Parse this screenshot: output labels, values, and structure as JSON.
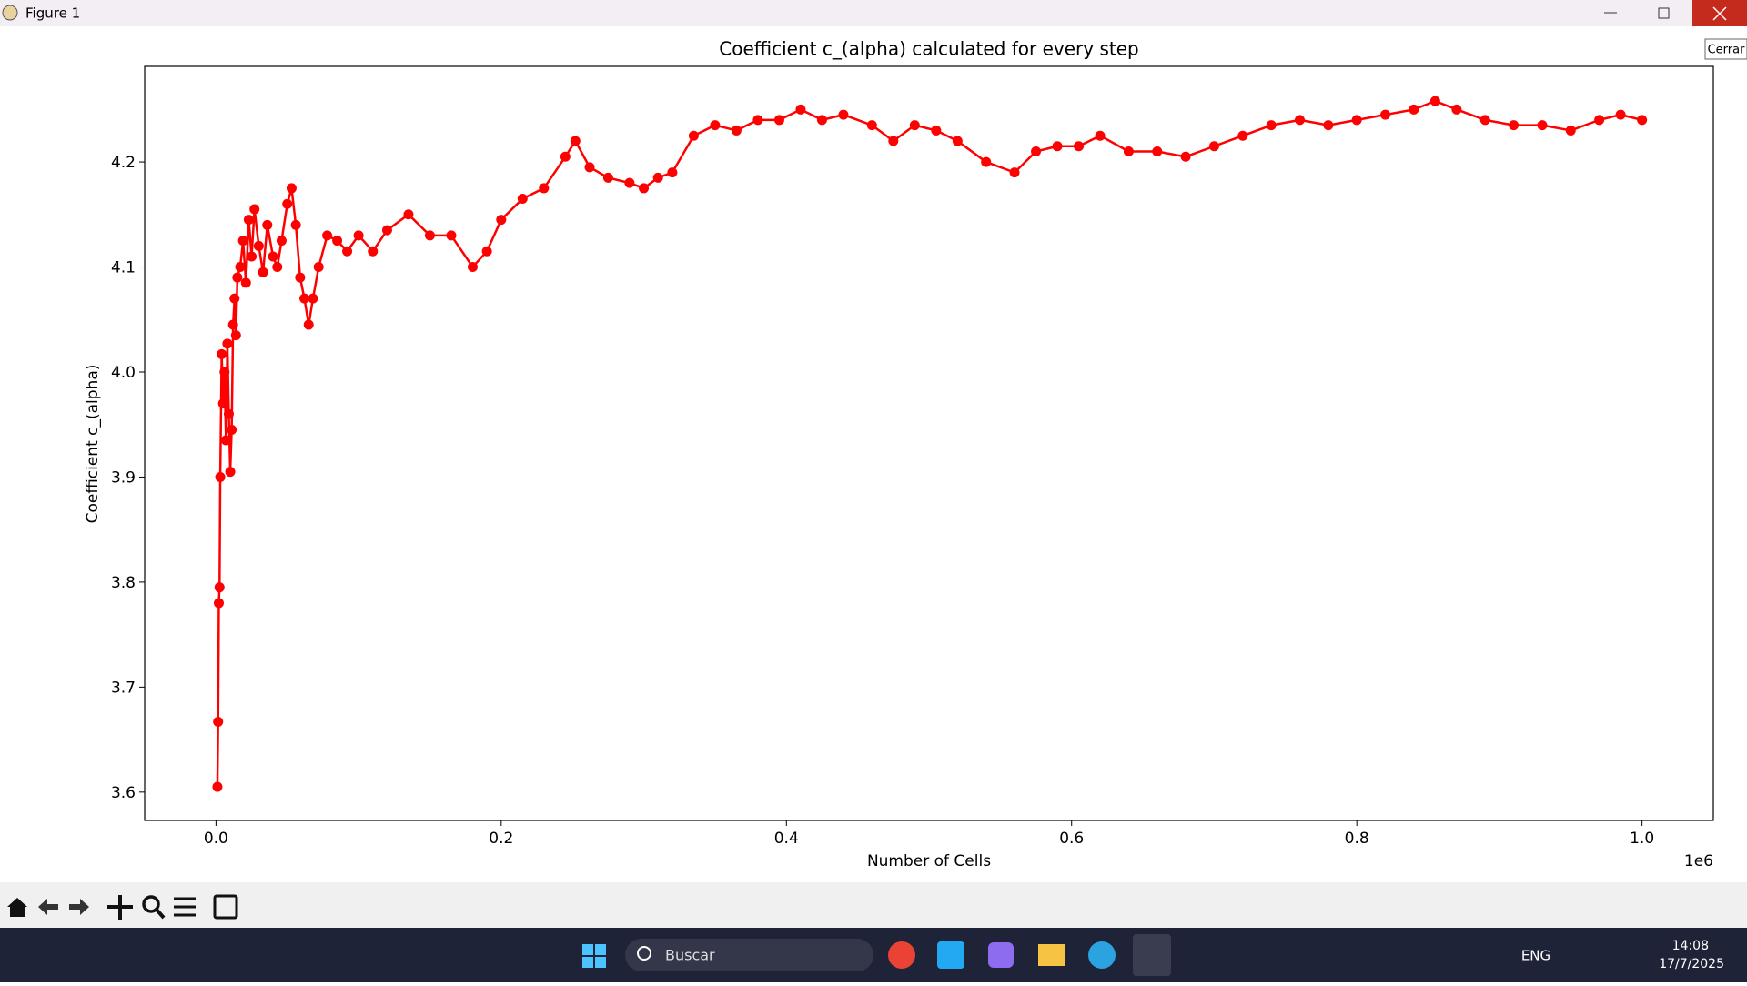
{
  "window": {
    "title": "Figure 1",
    "tooltip": "Cerrar"
  },
  "chart_data": {
    "type": "line",
    "title": "Coefficient c_(alpha) calculated for every step",
    "xlabel": "Number of Cells",
    "ylabel": "Coefficient c_(alpha)",
    "x_offset": "1e6",
    "x": [
      1000,
      1500,
      2000,
      2500,
      3000,
      4000,
      5000,
      6000,
      7000,
      8000,
      9000,
      10000,
      11000,
      12000,
      13000,
      14000,
      15000,
      17000,
      19000,
      21000,
      23000,
      25000,
      27000,
      30000,
      33000,
      36000,
      40000,
      43000,
      46000,
      50000,
      53000,
      56000,
      59000,
      62000,
      65000,
      68000,
      72000,
      78000,
      85000,
      92000,
      100000,
      110000,
      120000,
      135000,
      150000,
      165000,
      180000,
      190000,
      200000,
      215000,
      230000,
      245000,
      252000,
      262000,
      275000,
      290000,
      300000,
      310000,
      320000,
      335000,
      350000,
      365000,
      380000,
      395000,
      410000,
      425000,
      440000,
      460000,
      475000,
      490000,
      505000,
      520000,
      540000,
      560000,
      575000,
      590000,
      605000,
      620000,
      640000,
      660000,
      680000,
      700000,
      720000,
      740000,
      760000,
      780000,
      800000,
      820000,
      840000,
      855000,
      870000,
      890000,
      910000,
      930000,
      950000,
      970000,
      985000,
      1000000
    ],
    "series": [
      {
        "color": "#ff0000",
        "values": [
          3.605,
          3.667,
          3.78,
          3.795,
          3.9,
          4.017,
          3.97,
          4.0,
          3.935,
          4.027,
          3.96,
          3.905,
          3.945,
          4.045,
          4.07,
          4.035,
          4.09,
          4.1,
          4.125,
          4.085,
          4.145,
          4.11,
          4.155,
          4.12,
          4.095,
          4.14,
          4.11,
          4.1,
          4.125,
          4.16,
          4.175,
          4.14,
          4.09,
          4.07,
          4.045,
          4.07,
          4.1,
          4.13,
          4.125,
          4.115,
          4.13,
          4.115,
          4.135,
          4.15,
          4.13,
          4.13,
          4.1,
          4.115,
          4.145,
          4.165,
          4.175,
          4.205,
          4.22,
          4.195,
          4.185,
          4.18,
          4.175,
          4.185,
          4.19,
          4.225,
          4.235,
          4.23,
          4.24,
          4.24,
          4.25,
          4.24,
          4.245,
          4.235,
          4.22,
          4.235,
          4.23,
          4.22,
          4.2,
          4.19,
          4.21,
          4.215,
          4.215,
          4.225,
          4.21,
          4.21,
          4.205,
          4.215,
          4.225,
          4.235,
          4.24,
          4.235,
          4.24,
          4.245,
          4.25,
          4.258,
          4.25,
          4.24,
          4.235,
          4.235,
          4.23,
          4.24,
          4.245,
          4.24
        ]
      }
    ],
    "xlim": [
      -50000,
      1050000
    ],
    "xticks": [
      {
        "value": 0,
        "label": "0.0"
      },
      {
        "value": 200000,
        "label": "0.2"
      },
      {
        "value": 400000,
        "label": "0.4"
      },
      {
        "value": 600000,
        "label": "0.6"
      },
      {
        "value": 800000,
        "label": "0.8"
      },
      {
        "value": 1000000,
        "label": "1.0"
      }
    ],
    "ylim": [
      3.573,
      4.291
    ],
    "yticks": [
      3.6,
      3.7,
      3.8,
      3.9,
      {
        "value": 4,
        "label": "4.0"
      },
      4.1,
      4.2
    ],
    "grid": false
  },
  "taskbar": {
    "search": "Buscar",
    "language": "ENG",
    "time": "14:08",
    "date": "17/7/2025"
  }
}
